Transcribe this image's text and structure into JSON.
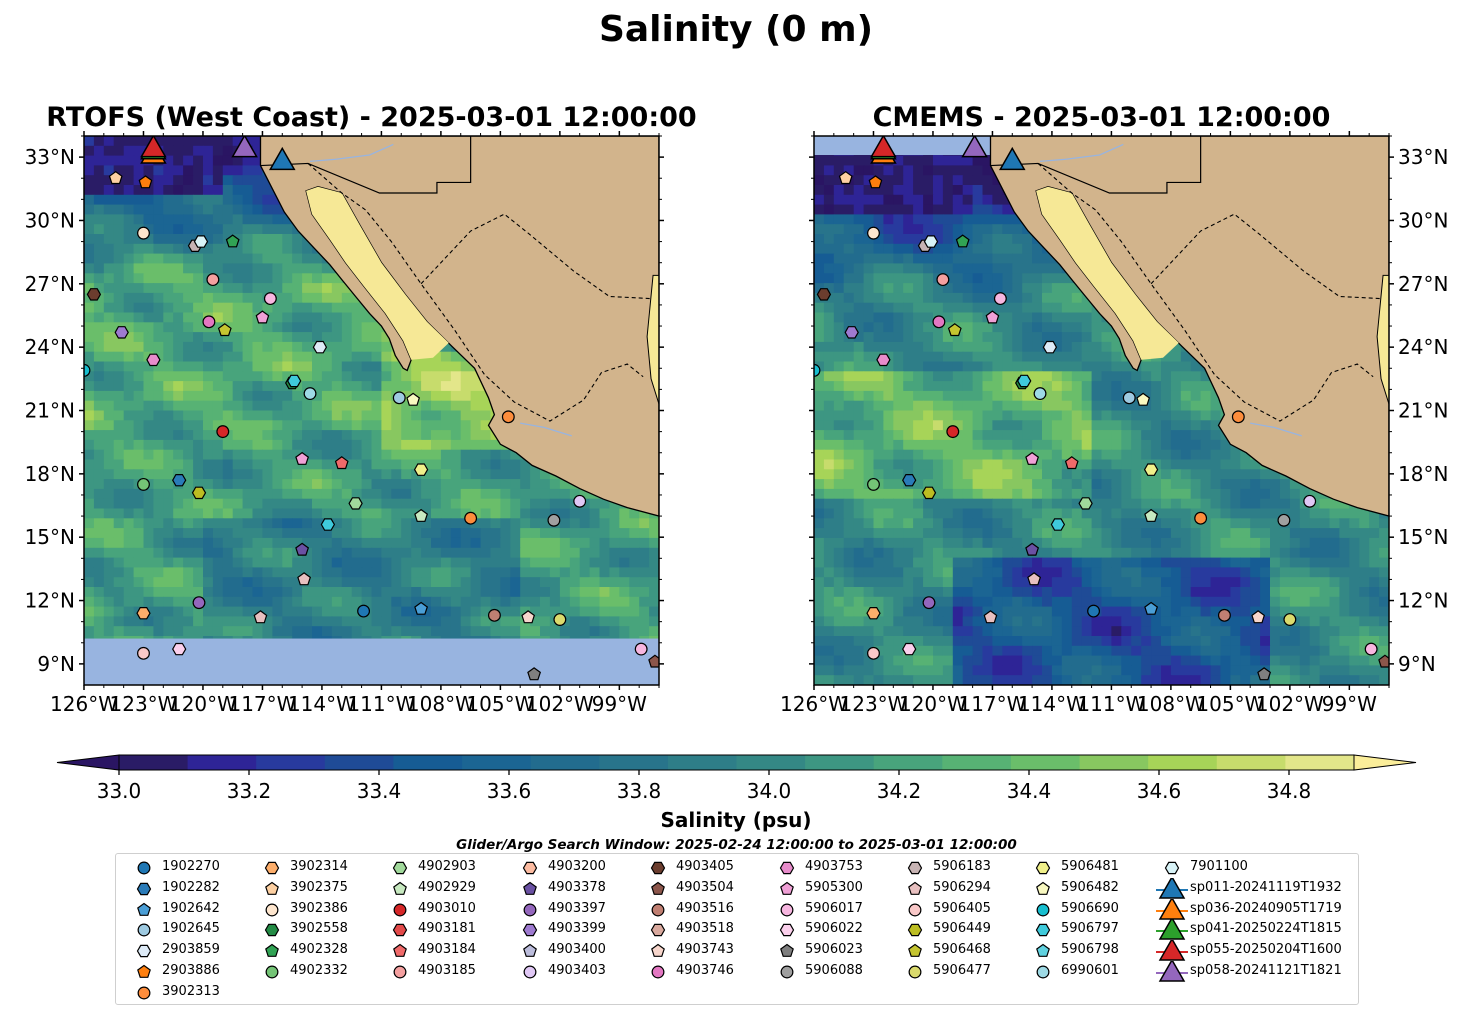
{
  "suptitle": "Salinity (0 m)",
  "search_window": "Glider/Argo Search Window: 2025-02-24 12:00:00 to 2025-03-01 12:00:00",
  "chart_data": [
    {
      "type": "heatmap",
      "title": "RTOFS (West Coast) - 2025-03-01 12:00:00",
      "lon_range": [
        -126,
        -97
      ],
      "lat_range": [
        8,
        34
      ],
      "x_ticks": [
        "126°W",
        "123°W",
        "120°W",
        "117°W",
        "114°W",
        "111°W",
        "108°W",
        "105°W",
        "102°W",
        "99°W"
      ],
      "y_ticks": [
        "9°N",
        "12°N",
        "15°N",
        "18°N",
        "21°N",
        "24°N",
        "27°N",
        "30°N",
        "33°N"
      ],
      "no_data_below_lat": 10.2,
      "no_data_color": "#98b4e0"
    },
    {
      "type": "heatmap",
      "title": "CMEMS - 2025-03-01 12:00:00",
      "lon_range": [
        -126,
        -97
      ],
      "lat_range": [
        8,
        34
      ],
      "x_ticks": [
        "126°W",
        "123°W",
        "120°W",
        "117°W",
        "114°W",
        "111°W",
        "108°W",
        "105°W",
        "102°W",
        "99°W"
      ],
      "y_ticks": [
        "9°N",
        "12°N",
        "15°N",
        "18°N",
        "21°N",
        "24°N",
        "27°N",
        "30°N",
        "33°N"
      ],
      "no_data_above_lat": 33.1,
      "no_data_color": "#98b4e0"
    }
  ],
  "colorbar": {
    "label": "Salinity (psu)",
    "min": 33.0,
    "max": 34.9,
    "step": 0.1,
    "ticks": [
      "33.0",
      "33.2",
      "33.4",
      "33.6",
      "33.8",
      "34.0",
      "34.2",
      "34.4",
      "34.6",
      "34.8"
    ],
    "colors": [
      "#2a1c66",
      "#2e2496",
      "#283a9e",
      "#1f4b96",
      "#165c94",
      "#1b6593",
      "#226c8e",
      "#28748b",
      "#2e7e88",
      "#348885",
      "#3d9682",
      "#48a47c",
      "#57b274",
      "#6abe6a",
      "#88c760",
      "#a7d458",
      "#c7dc6c",
      "#e3e68a"
    ],
    "under_color": "#2a1563",
    "over_color": "#fbee9a"
  },
  "land_color": "#d2b48c",
  "gulf_color": "#f6e896",
  "legend": [
    {
      "label": "1902270",
      "marker": "circle",
      "color": "#1f77b4"
    },
    {
      "label": "1902282",
      "marker": "hexagon",
      "color": "#2a7bb8"
    },
    {
      "label": "1902642",
      "marker": "pentagon",
      "color": "#4a9ed6"
    },
    {
      "label": "1902645",
      "marker": "circle",
      "color": "#9ecae1"
    },
    {
      "label": "2903859",
      "marker": "hexagon",
      "color": "#deebf7"
    },
    {
      "label": "2903886",
      "marker": "pentagon",
      "color": "#ff7f0e"
    },
    {
      "label": "3902313",
      "marker": "circle",
      "color": "#fd8d3c"
    },
    {
      "label": "3902314",
      "marker": "hexagon",
      "color": "#fdae6b"
    },
    {
      "label": "3902375",
      "marker": "pentagon",
      "color": "#fdd0a2"
    },
    {
      "label": "3902386",
      "marker": "circle",
      "color": "#fee6ce"
    },
    {
      "label": "3902558",
      "marker": "hexagon",
      "color": "#238b45"
    },
    {
      "label": "4902328",
      "marker": "pentagon",
      "color": "#31a354"
    },
    {
      "label": "4902332",
      "marker": "circle",
      "color": "#74c476"
    },
    {
      "label": "4902903",
      "marker": "hexagon",
      "color": "#a1d99b"
    },
    {
      "label": "4902929",
      "marker": "pentagon",
      "color": "#c7e9c0"
    },
    {
      "label": "4903010",
      "marker": "circle",
      "color": "#d62728"
    },
    {
      "label": "4903181",
      "marker": "hexagon",
      "color": "#e34a4a"
    },
    {
      "label": "4903184",
      "marker": "pentagon",
      "color": "#f06a6a"
    },
    {
      "label": "4903185",
      "marker": "circle",
      "color": "#f4a0a0"
    },
    {
      "label": "4903200",
      "marker": "hexagon",
      "color": "#fcbba1"
    },
    {
      "label": "4903378",
      "marker": "pentagon",
      "color": "#6a51a3"
    },
    {
      "label": "4903397",
      "marker": "circle",
      "color": "#9467bd"
    },
    {
      "label": "4903399",
      "marker": "hexagon",
      "color": "#9e7ad0"
    },
    {
      "label": "4903400",
      "marker": "pentagon",
      "color": "#bcbddc"
    },
    {
      "label": "4903403",
      "marker": "circle",
      "color": "#e0c8f5"
    },
    {
      "label": "4903405",
      "marker": "hexagon",
      "color": "#6b3d2e"
    },
    {
      "label": "4903504",
      "marker": "pentagon",
      "color": "#8c564b"
    },
    {
      "label": "4903516",
      "marker": "circle",
      "color": "#c07f72"
    },
    {
      "label": "4903518",
      "marker": "hexagon",
      "color": "#d9a99e"
    },
    {
      "label": "4903743",
      "marker": "pentagon",
      "color": "#f7d6cc"
    },
    {
      "label": "4903746",
      "marker": "circle",
      "color": "#e377c2"
    },
    {
      "label": "4903753",
      "marker": "hexagon",
      "color": "#e88ccb"
    },
    {
      "label": "5905300",
      "marker": "pentagon",
      "color": "#f0a0d6"
    },
    {
      "label": "5906017",
      "marker": "circle",
      "color": "#f7b6e0"
    },
    {
      "label": "5906022",
      "marker": "hexagon",
      "color": "#fbd0ec"
    },
    {
      "label": "5906023",
      "marker": "pentagon",
      "color": "#7f7f7f"
    },
    {
      "label": "5906088",
      "marker": "circle",
      "color": "#a0a0a0"
    },
    {
      "label": "5906183",
      "marker": "hexagon",
      "color": "#c7b3b3"
    },
    {
      "label": "5906294",
      "marker": "pentagon",
      "color": "#e8c0c0"
    },
    {
      "label": "5906405",
      "marker": "circle",
      "color": "#f9c8c8"
    },
    {
      "label": "5906449",
      "marker": "hexagon",
      "color": "#bcbd22"
    },
    {
      "label": "5906468",
      "marker": "pentagon",
      "color": "#c5c530"
    },
    {
      "label": "5906477",
      "marker": "circle",
      "color": "#dbdb6d"
    },
    {
      "label": "5906481",
      "marker": "hexagon",
      "color": "#f0f08a"
    },
    {
      "label": "5906482",
      "marker": "pentagon",
      "color": "#f8f8c0"
    },
    {
      "label": "5906690",
      "marker": "circle",
      "color": "#17becf"
    },
    {
      "label": "5906797",
      "marker": "hexagon",
      "color": "#3fcadb"
    },
    {
      "label": "5906798",
      "marker": "pentagon",
      "color": "#60d2e0"
    },
    {
      "label": "6990601",
      "marker": "circle",
      "color": "#9edae5"
    },
    {
      "label": "7901100",
      "marker": "hexagon",
      "color": "#d8f3f7"
    },
    {
      "label": "sp011-20241119T1932",
      "marker": "triangle",
      "color": "#1f77b4"
    },
    {
      "label": "sp036-20240905T1719",
      "marker": "triangle",
      "color": "#ff7f0e"
    },
    {
      "label": "sp041-20250224T1815",
      "marker": "triangle",
      "color": "#2ca02c"
    },
    {
      "label": "sp055-20250204T1600",
      "marker": "triangle",
      "color": "#d62728"
    },
    {
      "label": "sp058-20241121T1821",
      "marker": "triangle",
      "color": "#9467bd"
    }
  ],
  "floats": [
    {
      "id": "3902375",
      "lon": -124.4,
      "lat": 32.0
    },
    {
      "id": "2903886",
      "lon": -122.9,
      "lat": 31.8
    },
    {
      "id": "3902386",
      "lon": -123.0,
      "lat": 29.4
    },
    {
      "id": "5906183",
      "lon": -120.4,
      "lat": 28.8
    },
    {
      "id": "7901100",
      "lon": -120.1,
      "lat": 29.0
    },
    {
      "id": "4902328",
      "lon": -118.5,
      "lat": 29.0
    },
    {
      "id": "4903405",
      "lon": -125.5,
      "lat": 26.5
    },
    {
      "id": "4903185",
      "lon": -119.5,
      "lat": 27.2
    },
    {
      "id": "5906017",
      "lon": -116.6,
      "lat": 26.3
    },
    {
      "id": "4903746",
      "lon": -119.7,
      "lat": 25.2
    },
    {
      "id": "5905300",
      "lon": -117.0,
      "lat": 25.4
    },
    {
      "id": "5906468",
      "lon": -118.9,
      "lat": 24.8
    },
    {
      "id": "4903399",
      "lon": -124.1,
      "lat": 24.7
    },
    {
      "id": "4903753",
      "lon": -122.5,
      "lat": 23.4
    },
    {
      "id": "2903859",
      "lon": -114.1,
      "lat": 24.0
    },
    {
      "id": "5906690",
      "lon": -126.0,
      "lat": 22.9
    },
    {
      "id": "3902558",
      "lon": -115.5,
      "lat": 22.3
    },
    {
      "id": "5906797",
      "lon": -115.4,
      "lat": 22.4
    },
    {
      "id": "6990601",
      "lon": -114.6,
      "lat": 21.8
    },
    {
      "id": "1902645",
      "lon": -110.1,
      "lat": 21.6
    },
    {
      "id": "5906482",
      "lon": -109.4,
      "lat": 21.5
    },
    {
      "id": "3902313",
      "lon": -104.6,
      "lat": 20.7
    },
    {
      "id": "4903010",
      "lon": -119.0,
      "lat": 20.0
    },
    {
      "id": "5905300",
      "lon": -115.0,
      "lat": 18.7
    },
    {
      "id": "4903184",
      "lon": -113.0,
      "lat": 18.5
    },
    {
      "id": "5906481",
      "lon": -109.0,
      "lat": 18.2
    },
    {
      "id": "4902332",
      "lon": -123.0,
      "lat": 17.5
    },
    {
      "id": "1902282",
      "lon": -121.2,
      "lat": 17.7
    },
    {
      "id": "5906449",
      "lon": -120.2,
      "lat": 17.1
    },
    {
      "id": "4902903",
      "lon": -112.3,
      "lat": 16.6
    },
    {
      "id": "4902929",
      "lon": -109.0,
      "lat": 16.0
    },
    {
      "id": "3902313",
      "lon": -106.5,
      "lat": 15.9
    },
    {
      "id": "5906088",
      "lon": -102.3,
      "lat": 15.8
    },
    {
      "id": "4903403",
      "lon": -101.0,
      "lat": 16.7
    },
    {
      "id": "5906797",
      "lon": -113.7,
      "lat": 15.6
    },
    {
      "id": "4903378",
      "lon": -115.0,
      "lat": 14.4
    },
    {
      "id": "5906294",
      "lon": -114.9,
      "lat": 13.0
    },
    {
      "id": "4903397",
      "lon": -120.2,
      "lat": 11.9
    },
    {
      "id": "3902314",
      "lon": -123.0,
      "lat": 11.4
    },
    {
      "id": "5906294",
      "lon": -117.1,
      "lat": 11.2
    },
    {
      "id": "1902270",
      "lon": -111.9,
      "lat": 11.5
    },
    {
      "id": "1902642",
      "lon": -109.0,
      "lat": 11.6
    },
    {
      "id": "4903516",
      "lon": -105.3,
      "lat": 11.3
    },
    {
      "id": "4903743",
      "lon": -103.6,
      "lat": 11.2
    },
    {
      "id": "5906477",
      "lon": -102.0,
      "lat": 11.1
    },
    {
      "id": "5906405",
      "lon": -123.0,
      "lat": 9.5
    },
    {
      "id": "5906022",
      "lon": -121.2,
      "lat": 9.7
    },
    {
      "id": "5906023",
      "lon": -103.3,
      "lat": 8.5
    },
    {
      "id": "5906017",
      "lon": -97.9,
      "lat": 9.7
    },
    {
      "id": "4903504",
      "lon": -97.2,
      "lat": 9.1
    }
  ],
  "gliders": [
    {
      "id": "sp011-20241119T1932",
      "lon": -116.0,
      "lat": 32.8
    },
    {
      "id": "sp036-20240905T1719",
      "lon": -122.5,
      "lat": 33.1
    },
    {
      "id": "sp041-20250224T1815",
      "lon": -122.5,
      "lat": 33.3
    },
    {
      "id": "sp055-20250204T1600",
      "lon": -122.5,
      "lat": 33.4
    },
    {
      "id": "sp058-20241121T1821",
      "lon": -117.9,
      "lat": 33.4
    }
  ]
}
